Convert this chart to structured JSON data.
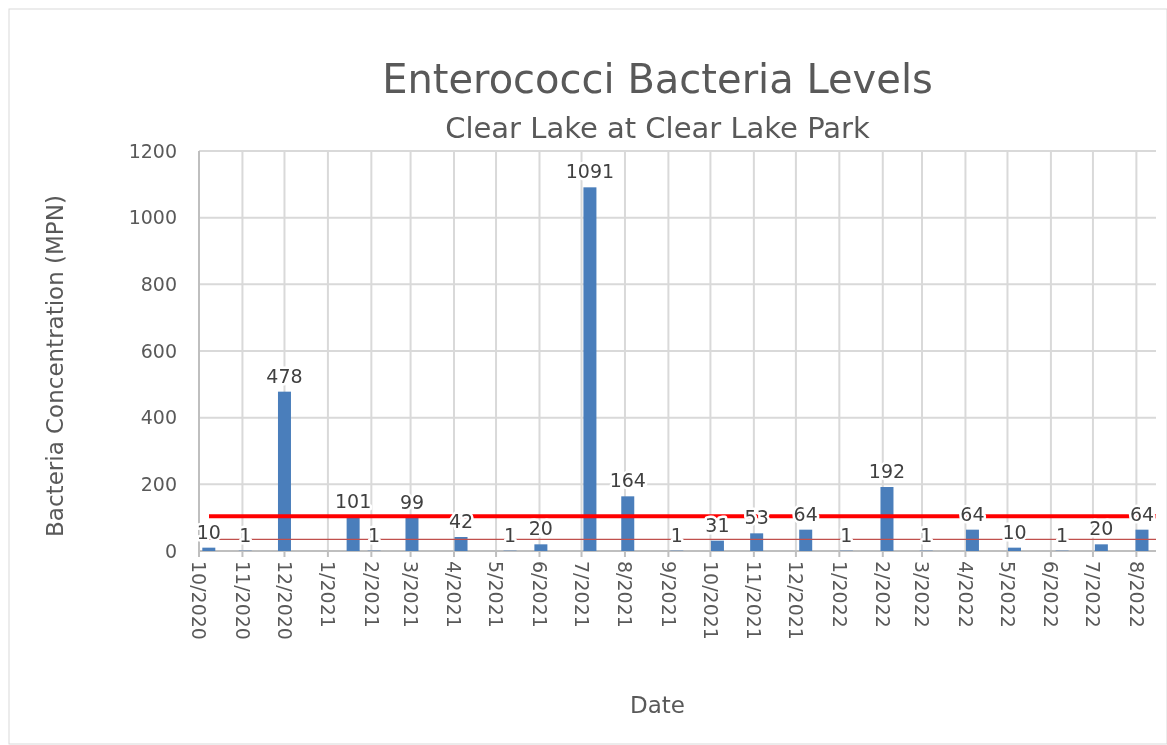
{
  "chart_data": {
    "type": "bar",
    "title": "Enterococci Bacteria Levels",
    "subtitle": "Clear Lake at Clear Lake Park",
    "xlabel": "Date",
    "ylabel": "Bacteria Concentration (MPN)",
    "x": [
      "2020-10-08",
      "2020-11-03",
      "2020-12-01",
      "2021-01-19",
      "2021-02-03",
      "2021-03-02",
      "2021-04-06",
      "2021-05-11",
      "2021-06-02",
      "2021-07-07",
      "2021-08-03",
      "2021-09-07",
      "2021-10-06",
      "2021-11-03",
      "2021-12-08",
      "2022-01-06",
      "2022-02-04",
      "2022-03-04",
      "2022-04-06",
      "2022-05-06",
      "2022-06-09",
      "2022-07-07",
      "2022-08-05"
    ],
    "values": [
      10,
      1,
      478,
      101,
      1,
      99,
      42,
      1,
      20,
      1091,
      164,
      1,
      31,
      53,
      64,
      1,
      192,
      1,
      64,
      10,
      1,
      20,
      64
    ],
    "color": "#4a7ebb",
    "data_labels": true,
    "xlim": [
      "2020-10-01",
      "2022-08-15"
    ],
    "xticks": [
      {
        "value": "2020-10-01",
        "label": "10/2020"
      },
      {
        "value": "2020-11-01",
        "label": "11/2020"
      },
      {
        "value": "2020-12-01",
        "label": "12/2020"
      },
      {
        "value": "2021-01-01",
        "label": "1/2021"
      },
      {
        "value": "2021-02-01",
        "label": "2/2021"
      },
      {
        "value": "2021-03-01",
        "label": "3/2021"
      },
      {
        "value": "2021-04-01",
        "label": "4/2021"
      },
      {
        "value": "2021-05-01",
        "label": "5/2021"
      },
      {
        "value": "2021-06-01",
        "label": "6/2021"
      },
      {
        "value": "2021-07-01",
        "label": "7/2021"
      },
      {
        "value": "2021-08-01",
        "label": "8/2021"
      },
      {
        "value": "2021-09-01",
        "label": "9/2021"
      },
      {
        "value": "2021-10-01",
        "label": "10/2021"
      },
      {
        "value": "2021-11-01",
        "label": "11/2021"
      },
      {
        "value": "2021-12-01",
        "label": "12/2021"
      },
      {
        "value": "2022-01-01",
        "label": "1/2022"
      },
      {
        "value": "2022-02-01",
        "label": "2/2022"
      },
      {
        "value": "2022-03-01",
        "label": "3/2022"
      },
      {
        "value": "2022-04-01",
        "label": "4/2022"
      },
      {
        "value": "2022-05-01",
        "label": "5/2022"
      },
      {
        "value": "2022-06-01",
        "label": "6/2022"
      },
      {
        "value": "2022-07-01",
        "label": "7/2022"
      },
      {
        "value": "2022-08-01",
        "label": "8/2022"
      }
    ],
    "ylim": [
      0,
      1200
    ],
    "yticks": [
      0,
      200,
      400,
      600,
      800,
      1000,
      1200
    ],
    "grid": true,
    "ref_lines": [
      {
        "axis": "y",
        "value": 104,
        "color": "#ff0000"
      },
      {
        "axis": "y",
        "value": 35,
        "color": "#c0504d"
      }
    ]
  }
}
